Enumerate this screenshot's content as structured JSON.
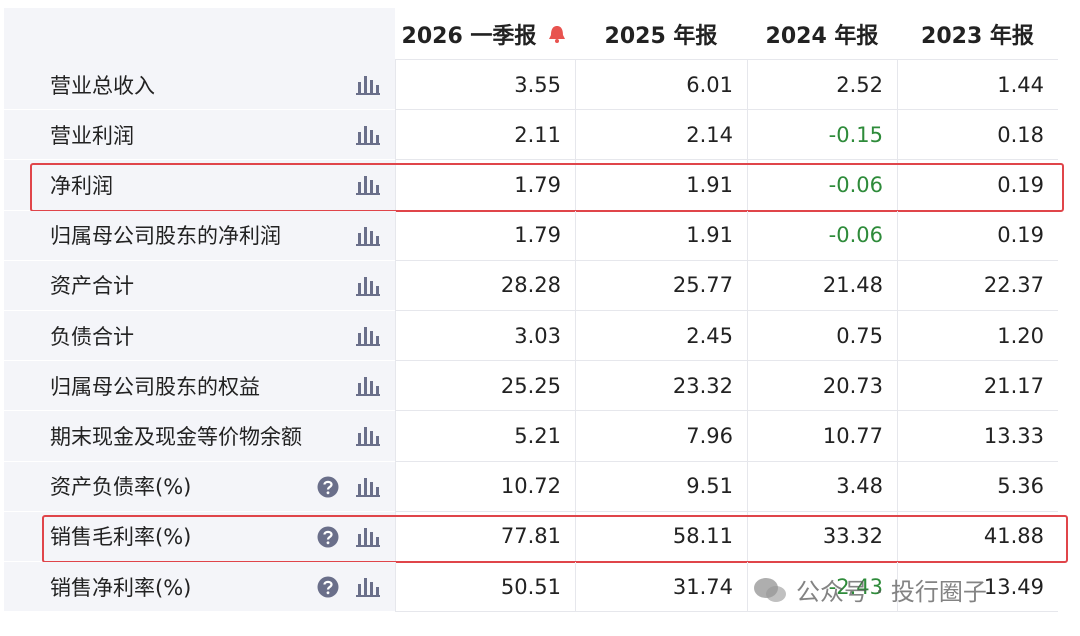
{
  "table": {
    "header": [
      "2026 一季报",
      "2025 年报",
      "2024 年报",
      "2023 年报"
    ],
    "rows": [
      {
        "label": "营业总收入",
        "values": [
          "3.55",
          "6.01",
          "2.52",
          "1.44"
        ]
      },
      {
        "label": "营业利润",
        "values": [
          "2.11",
          "2.14",
          "-0.15",
          "0.18"
        ]
      },
      {
        "label": "净利润",
        "highlighted": true,
        "values": [
          "1.79",
          "1.91",
          "-0.06",
          "0.19"
        ]
      },
      {
        "label": "归属母公司股东的净利润",
        "values": [
          "1.79",
          "1.91",
          "-0.06",
          "0.19"
        ]
      },
      {
        "label": "资产合计",
        "values": [
          "28.28",
          "25.77",
          "21.48",
          "22.37"
        ]
      },
      {
        "label": "负债合计",
        "values": [
          "3.03",
          "2.45",
          "0.75",
          "1.20"
        ]
      },
      {
        "label": "归属母公司股东的权益",
        "values": [
          "25.25",
          "23.32",
          "20.73",
          "21.17"
        ]
      },
      {
        "label": "期末现金及现金等价物余额",
        "values": [
          "5.21",
          "7.96",
          "10.77",
          "13.33"
        ]
      },
      {
        "label": "资产负债率(%)",
        "help": true,
        "values": [
          "10.72",
          "9.51",
          "3.48",
          "5.36"
        ]
      },
      {
        "label": "销售毛利率(%)",
        "help": true,
        "highlighted": true,
        "values": [
          "77.81",
          "58.11",
          "33.32",
          "41.88"
        ]
      },
      {
        "label": "销售净利率(%)",
        "help": true,
        "values": [
          "50.51",
          "31.74",
          "-2.43",
          "13.49"
        ]
      }
    ]
  },
  "watermark": "公众号 · 投行圈子"
}
